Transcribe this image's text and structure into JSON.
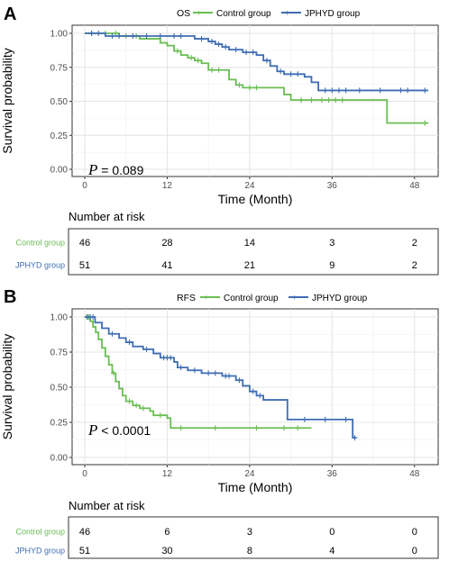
{
  "chart_data": [
    {
      "panel": "A",
      "type": "line",
      "legend_title": "OS",
      "legend_position": "top",
      "xlabel": "Time (Month)",
      "ylabel": "Survival probability",
      "xlim": [
        0,
        50
      ],
      "ylim": [
        0,
        1
      ],
      "x_ticks": [
        "0",
        "12",
        "24",
        "36",
        "48"
      ],
      "y_ticks": [
        "0.00",
        "0.25",
        "0.50",
        "0.75",
        "1.00"
      ],
      "annotation": {
        "symbol": "P",
        "text": " = 0.089"
      },
      "grid": true,
      "series": [
        {
          "name": "Control group",
          "color": "#6abe53",
          "steps": [
            [
              0,
              1.0
            ],
            [
              5,
              0.98
            ],
            [
              8,
              0.96
            ],
            [
              11,
              0.93
            ],
            [
              12,
              0.91
            ],
            [
              13,
              0.87
            ],
            [
              14,
              0.84
            ],
            [
              15,
              0.82
            ],
            [
              16,
              0.8
            ],
            [
              17,
              0.78
            ],
            [
              18,
              0.73
            ],
            [
              20,
              0.73
            ],
            [
              21,
              0.66
            ],
            [
              22,
              0.62
            ],
            [
              23,
              0.6
            ],
            [
              29,
              0.55
            ],
            [
              30,
              0.51
            ],
            [
              43.5,
              0.51
            ],
            [
              44,
              0.34
            ],
            [
              50,
              0.34
            ]
          ],
          "censor_times": [
            1,
            3,
            4.5,
            6,
            7.5,
            13.5,
            15.5,
            16.5,
            18.5,
            19.5,
            22.5,
            24,
            25,
            31.5,
            33,
            34.5,
            35.5,
            36.5,
            37.5,
            49.5
          ]
        },
        {
          "name": "JPHYD group",
          "color": "#3f6db3",
          "steps": [
            [
              0,
              1.0
            ],
            [
              3,
              0.98
            ],
            [
              15,
              0.98
            ],
            [
              16,
              0.96
            ],
            [
              18,
              0.94
            ],
            [
              19,
              0.92
            ],
            [
              20,
              0.9
            ],
            [
              21,
              0.88
            ],
            [
              23,
              0.86
            ],
            [
              25,
              0.84
            ],
            [
              26,
              0.8
            ],
            [
              27,
              0.76
            ],
            [
              28,
              0.72
            ],
            [
              29,
              0.7
            ],
            [
              32,
              0.68
            ],
            [
              33,
              0.64
            ],
            [
              34,
              0.58
            ],
            [
              50,
              0.58
            ]
          ],
          "censor_times": [
            1,
            2,
            4,
            5,
            7,
            9,
            11,
            13,
            14,
            17,
            18.5,
            19.5,
            20.5,
            22,
            23.5,
            24.5,
            26.5,
            28.5,
            30,
            31,
            35,
            36,
            37,
            38,
            40,
            43,
            46,
            47,
            49.5
          ]
        }
      ],
      "risk_table": {
        "title": "Number at risk",
        "times": [
          "0",
          "12",
          "24",
          "36",
          "48"
        ],
        "rows": [
          {
            "name": "Control group",
            "color": "#6abe53",
            "values": [
              "46",
              "28",
              "14",
              "3",
              "2"
            ]
          },
          {
            "name": "JPHYD group",
            "color": "#3f6db3",
            "values": [
              "51",
              "41",
              "21",
              "9",
              "2"
            ]
          }
        ]
      }
    },
    {
      "panel": "B",
      "type": "line",
      "legend_title": "RFS",
      "legend_position": "top",
      "xlabel": "Time (Month)",
      "ylabel": "Survival probability",
      "xlim": [
        0,
        50
      ],
      "ylim": [
        0,
        1
      ],
      "x_ticks": [
        "0",
        "12",
        "24",
        "36",
        "48"
      ],
      "y_ticks": [
        "0.00",
        "0.25",
        "0.50",
        "0.75",
        "1.00"
      ],
      "annotation": {
        "symbol": "P",
        "text": " < 0.0001"
      },
      "grid": true,
      "series": [
        {
          "name": "Control group",
          "color": "#6abe53",
          "steps": [
            [
              0,
              1.0
            ],
            [
              0.8,
              0.97
            ],
            [
              1.2,
              0.93
            ],
            [
              1.6,
              0.89
            ],
            [
              2,
              0.84
            ],
            [
              2.5,
              0.78
            ],
            [
              3,
              0.72
            ],
            [
              3.5,
              0.66
            ],
            [
              4,
              0.6
            ],
            [
              4.5,
              0.54
            ],
            [
              5,
              0.49
            ],
            [
              5.5,
              0.44
            ],
            [
              6,
              0.4
            ],
            [
              7,
              0.37
            ],
            [
              8,
              0.35
            ],
            [
              9.5,
              0.33
            ],
            [
              10,
              0.3
            ],
            [
              12,
              0.28
            ],
            [
              12.5,
              0.21
            ],
            [
              33,
              0.21
            ]
          ],
          "censor_times": [
            0.3,
            0.6,
            4.2,
            6.5,
            7.5,
            8.5,
            11,
            14,
            19,
            25,
            29,
            31
          ]
        },
        {
          "name": "JPHYD group",
          "color": "#3f6db3",
          "steps": [
            [
              0,
              1.0
            ],
            [
              1.5,
              0.96
            ],
            [
              2.5,
              0.92
            ],
            [
              3.5,
              0.88
            ],
            [
              5,
              0.85
            ],
            [
              6,
              0.82
            ],
            [
              7,
              0.79
            ],
            [
              8.5,
              0.77
            ],
            [
              10,
              0.74
            ],
            [
              11,
              0.71
            ],
            [
              13,
              0.68
            ],
            [
              13.5,
              0.64
            ],
            [
              15,
              0.62
            ],
            [
              17,
              0.6
            ],
            [
              20,
              0.58
            ],
            [
              22,
              0.55
            ],
            [
              23,
              0.51
            ],
            [
              24,
              0.47
            ],
            [
              25,
              0.44
            ],
            [
              26,
              0.41
            ],
            [
              29.5,
              0.27
            ],
            [
              38.5,
              0.27
            ],
            [
              39,
              0.14
            ],
            [
              39.5,
              0.14
            ]
          ],
          "censor_times": [
            0.4,
            0.8,
            1.2,
            4,
            6.5,
            9,
            11.5,
            12,
            12.5,
            14,
            16,
            18,
            19,
            20.5,
            21,
            22.5,
            24.5,
            25.5,
            32,
            35,
            38,
            39.3
          ]
        }
      ],
      "risk_table": {
        "title": "Number at risk",
        "times": [
          "0",
          "12",
          "24",
          "36",
          "48"
        ],
        "rows": [
          {
            "name": "Control group",
            "color": "#6abe53",
            "values": [
              "46",
              "6",
              "3",
              "0",
              "0"
            ]
          },
          {
            "name": "JPHYD group",
            "color": "#3f6db3",
            "values": [
              "51",
              "30",
              "8",
              "4",
              "0"
            ]
          }
        ]
      }
    }
  ]
}
